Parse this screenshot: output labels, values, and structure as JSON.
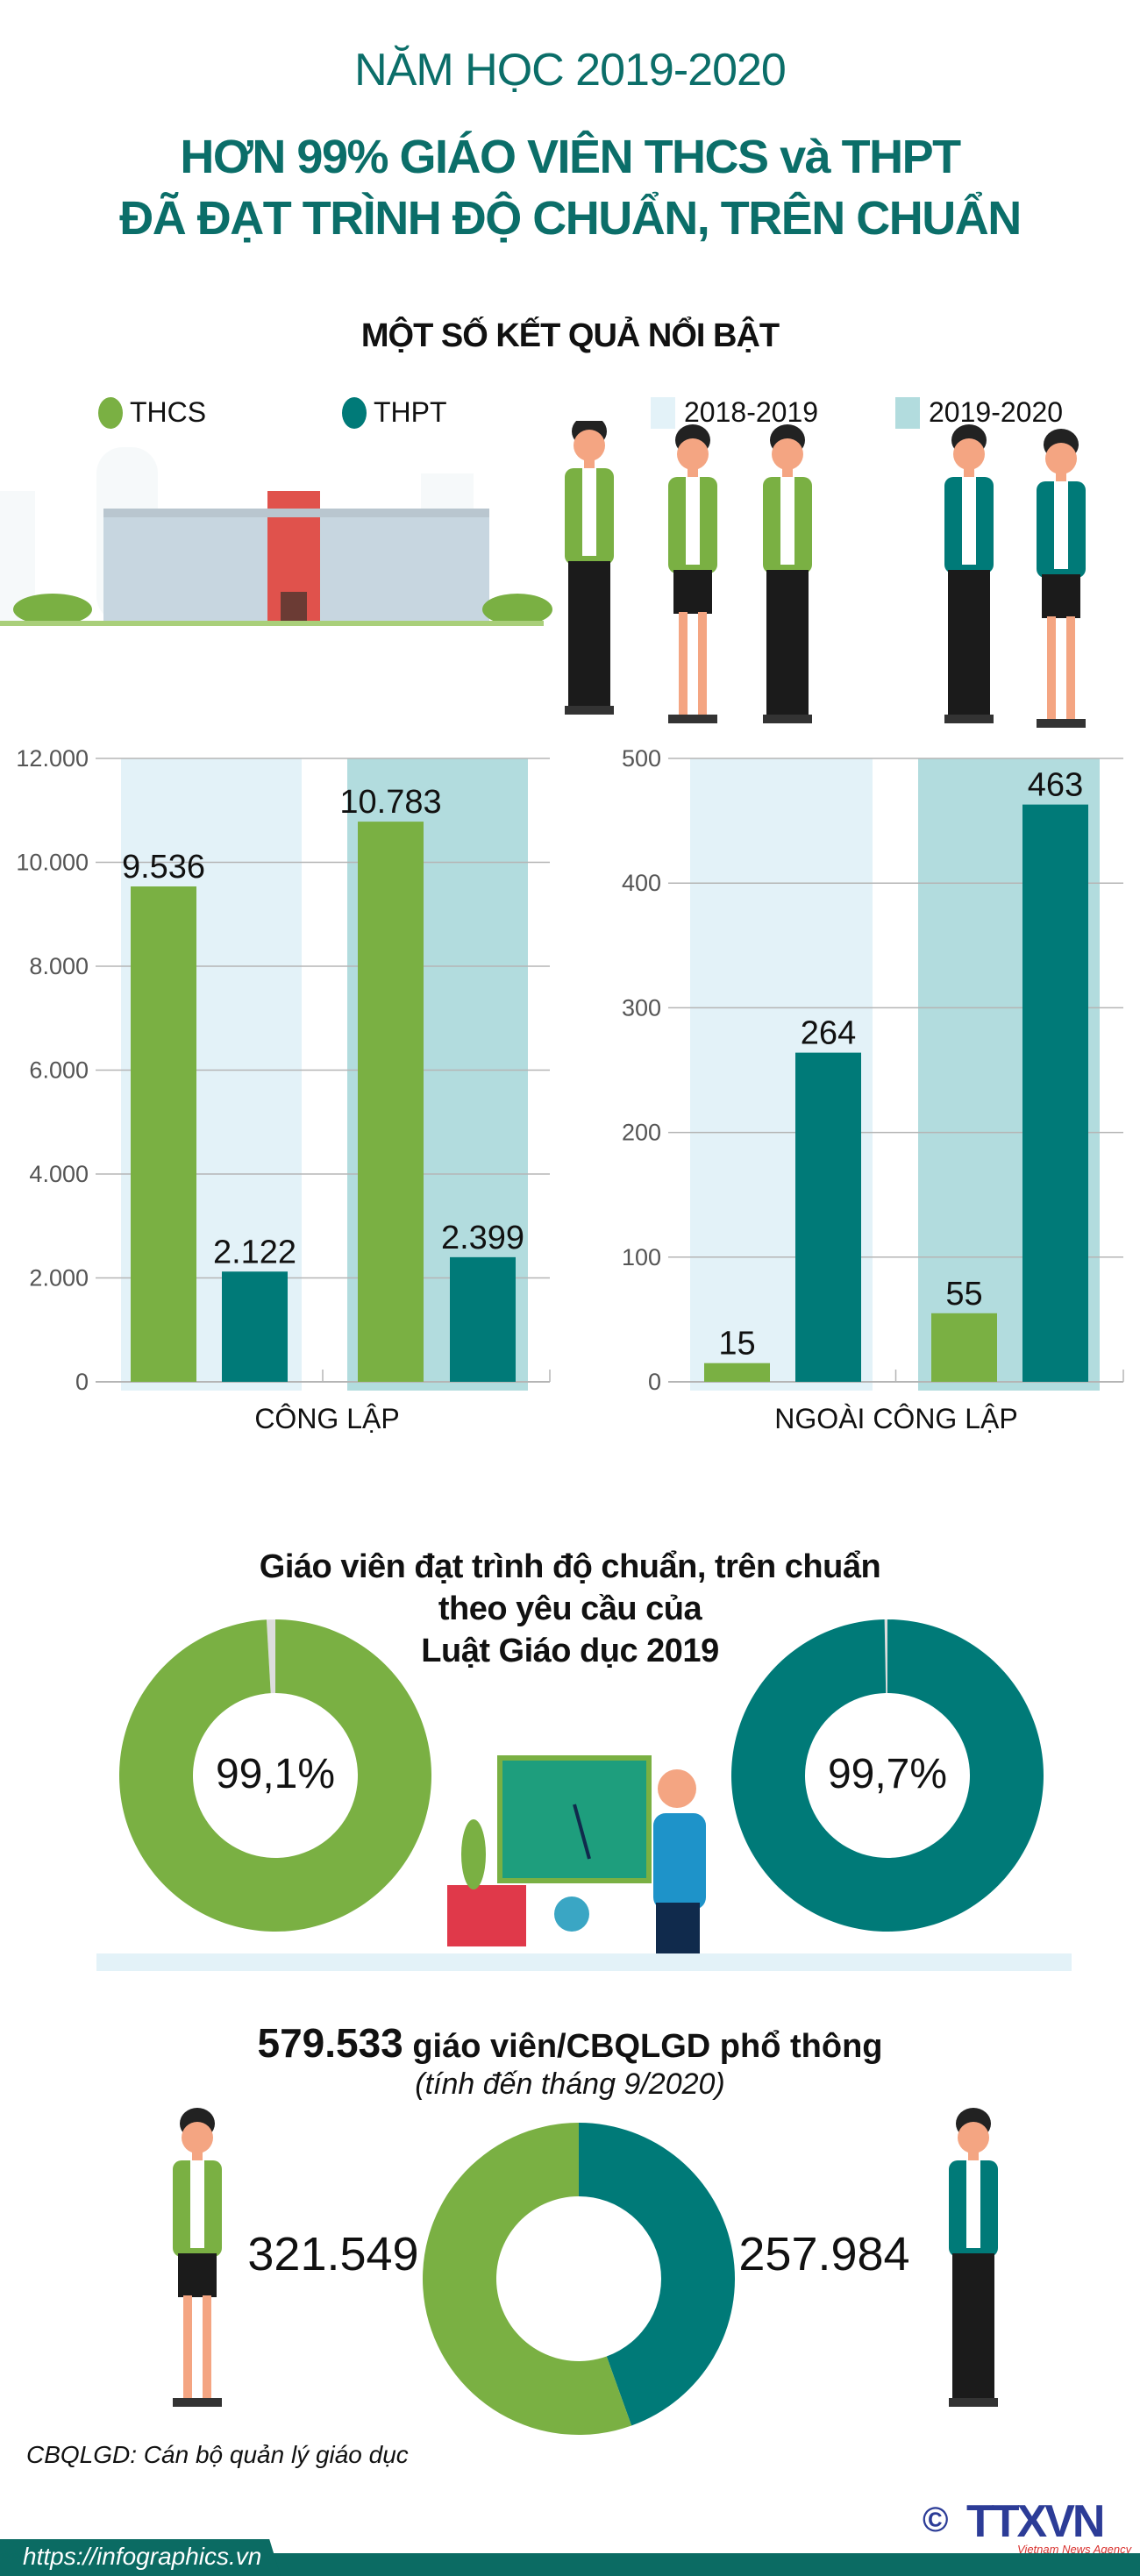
{
  "header": {
    "year_line": "NĂM HỌC 2019-2020",
    "title_line1": "HƠN 99% GIÁO VIÊN THCS và THPT",
    "title_line2": "ĐÃ ĐẠT TRÌNH ĐỘ CHUẨN, TRÊN CHUẨN",
    "section_title": "MỘT SỐ KẾT QUẢ NỔI BẬT"
  },
  "legend": {
    "items": [
      {
        "label": "THCS",
        "color": "#7ab043"
      },
      {
        "label": "THPT",
        "color": "#007a78"
      },
      {
        "label": "2018-2019",
        "color": "#e3f2f8"
      },
      {
        "label": "2019-2020",
        "color": "#b2dcde"
      }
    ]
  },
  "chart_data": [
    {
      "type": "bar",
      "xlabel": "CÔNG LẬP",
      "ylim": [
        0,
        12000
      ],
      "yticks": [
        "0",
        "2.000",
        "4.000",
        "6.000",
        "8.000",
        "10.000",
        "12.000"
      ],
      "grid": true,
      "groups": [
        "2018-2019",
        "2019-2020"
      ],
      "series": [
        {
          "name": "THCS",
          "values": [
            9536,
            10783
          ],
          "labels": [
            "9.536",
            "10.783"
          ]
        },
        {
          "name": "THPT",
          "values": [
            2122,
            2399
          ],
          "labels": [
            "2.122",
            "2.399"
          ]
        }
      ]
    },
    {
      "type": "bar",
      "xlabel": "NGOÀI CÔNG LẬP",
      "ylim": [
        0,
        500
      ],
      "yticks": [
        "0",
        "100",
        "200",
        "300",
        "400",
        "500"
      ],
      "grid": true,
      "groups": [
        "2018-2019",
        "2019-2020"
      ],
      "series": [
        {
          "name": "THCS",
          "values": [
            15,
            55
          ],
          "labels": [
            "15",
            "55"
          ]
        },
        {
          "name": "THPT",
          "values": [
            264,
            463
          ],
          "labels": [
            "264",
            "463"
          ]
        }
      ]
    },
    {
      "type": "pie",
      "title": "Giáo viên đạt trình độ chuẩn, trên chuẩn theo yêu cầu của Luật Giáo dục 2019",
      "slices": [
        {
          "name": "THCS",
          "value": 99.1,
          "label": "99,1%",
          "color": "#7ab043"
        },
        {
          "name": "THPT",
          "value": 99.7,
          "label": "99,7%",
          "color": "#007a78"
        }
      ]
    },
    {
      "type": "pie",
      "title": "579.533 giáo viên/CBQLGD phổ thông",
      "values": [
        257984,
        321549
      ],
      "labels": [
        "257.984",
        "321.549"
      ],
      "colors": [
        "#007a78",
        "#7ab043"
      ]
    }
  ],
  "donuts": {
    "title_lines": [
      "Giáo viên đạt trình độ chuẩn, trên chuẩn",
      "theo yêu cầu của",
      "Luật Giáo dục 2019"
    ],
    "left_label": "99,1%",
    "right_label": "99,7%"
  },
  "totals": {
    "total_number": "579.533",
    "total_text": " giáo viên/CBQLGD phổ thông",
    "subtitle": "(tính đến tháng 9/2020)",
    "left_value": "321.549",
    "right_value": "257.984",
    "note": "CBQLGD: Cán bộ quản lý giáo dục"
  },
  "footer": {
    "url": "https://infographics.vn",
    "logo_text": "TTXVN",
    "logo_sub": "Vietnam News Agency",
    "copyright": "©"
  },
  "colors": {
    "thcs": "#7ab043",
    "thpt": "#007a78",
    "band_2018": "#e3f2f8",
    "band_2019": "#b2dcde",
    "title": "#0b6e69",
    "grid": "#b5b5b5",
    "remainder": "#dddddd"
  }
}
